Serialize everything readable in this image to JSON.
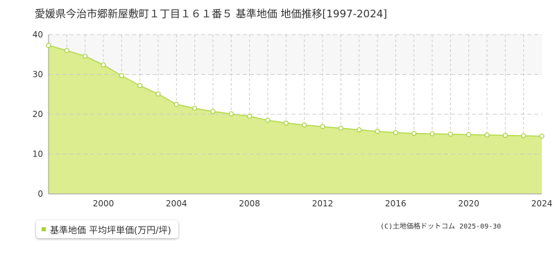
{
  "title": "愛媛県今治市郷新屋敷町１丁目１６１番５ 基準地価 地価推移[1997-2024]",
  "legend": {
    "label": "基準地価 平均坪単価(万円/坪)"
  },
  "copyright": "(C)土地価格ドットコム 2025-09-30",
  "colors": {
    "line": "#b5d94a",
    "fill": "#dbed8f",
    "marker": "#a9d13a",
    "band": "#f7f7f7",
    "grid": "#cccccc"
  },
  "chart_data": {
    "type": "area",
    "title": "",
    "xlabel": "",
    "ylabel": "",
    "xlim": [
      1997,
      2024
    ],
    "ylim": [
      0,
      40
    ],
    "yticks": [
      "0",
      "10",
      "20",
      "30",
      "40"
    ],
    "xticks": [
      "2000",
      "2004",
      "2008",
      "2012",
      "2016",
      "2020",
      "2024"
    ],
    "legend_position": "bottom-left",
    "grid": true,
    "series": [
      {
        "name": "基準地価 平均坪単価(万円/坪)",
        "x": [
          1997,
          1998,
          1999,
          2000,
          2001,
          2002,
          2003,
          2004,
          2005,
          2006,
          2007,
          2008,
          2009,
          2010,
          2011,
          2012,
          2013,
          2014,
          2015,
          2016,
          2017,
          2018,
          2019,
          2020,
          2021,
          2022,
          2023,
          2024
        ],
        "values": [
          37.3,
          36.0,
          34.6,
          32.4,
          29.7,
          27.2,
          25.1,
          22.5,
          21.5,
          20.7,
          20.1,
          19.5,
          18.5,
          17.8,
          17.3,
          16.9,
          16.5,
          16.1,
          15.7,
          15.4,
          15.2,
          15.1,
          15.0,
          14.9,
          14.8,
          14.7,
          14.6,
          14.5
        ]
      }
    ]
  }
}
